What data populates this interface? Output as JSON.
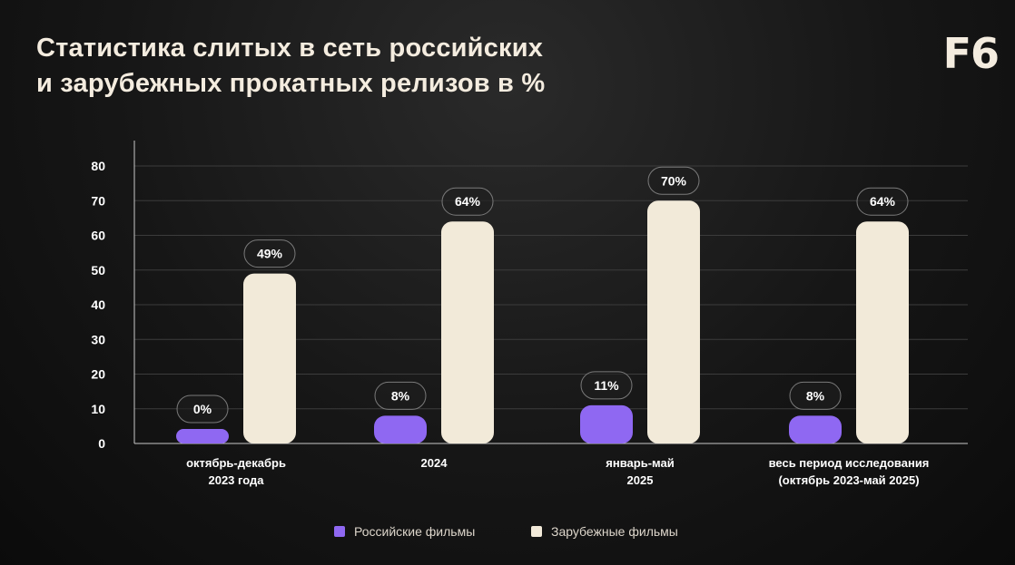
{
  "title": {
    "line1": "Статистика слитых в сеть российских",
    "line2": "и зарубежных прокатных релизов в %"
  },
  "logo": "F6",
  "colors": {
    "russian": "#8f68f2",
    "foreign": "#f2ead9",
    "grid": "#3c3c3c",
    "axis": "#c8c8c8",
    "label_bubble_border": "#7a7a7a"
  },
  "chart_data": {
    "type": "bar",
    "categories": [
      [
        "октябрь-декабрь",
        "2023 года"
      ],
      [
        "2024"
      ],
      [
        "январь-май",
        "2025"
      ],
      [
        "весь период исследования",
        "(октябрь 2023-май 2025)"
      ]
    ],
    "series": [
      {
        "name": "Российские фильмы",
        "values": [
          0,
          8,
          11,
          8
        ],
        "data_labels": [
          "0%",
          "8%",
          "11%",
          "8%"
        ]
      },
      {
        "name": "Зарубежные фильмы",
        "values": [
          49,
          64,
          70,
          64
        ],
        "data_labels": [
          "49%",
          "64%",
          "70%",
          "64%"
        ]
      }
    ],
    "ylim": [
      0,
      80
    ],
    "yticks": [
      0,
      10,
      20,
      30,
      40,
      50,
      60,
      70,
      80
    ],
    "grid": true,
    "legend_position": "bottom"
  }
}
